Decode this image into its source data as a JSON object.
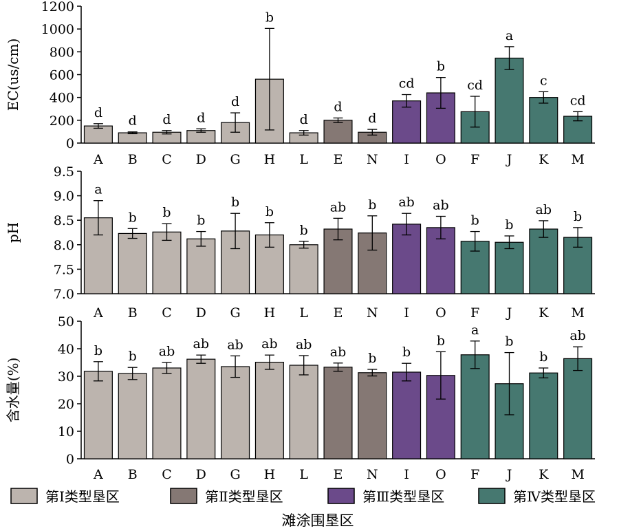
{
  "chart_data": [
    {
      "type": "bar",
      "ylabel": "EC(us/cm)",
      "ylim": [
        0,
        1200
      ],
      "yticks": [
        "0",
        "200",
        "400",
        "600",
        "800",
        "1000",
        "1200"
      ],
      "categories": [
        "A",
        "B",
        "C",
        "D",
        "G",
        "H",
        "L",
        "E",
        "N",
        "I",
        "O",
        "F",
        "J",
        "K",
        "M"
      ],
      "groups": [
        0,
        0,
        0,
        0,
        0,
        0,
        0,
        1,
        1,
        2,
        2,
        3,
        3,
        3,
        3
      ],
      "values": [
        150,
        90,
        95,
        110,
        180,
        560,
        90,
        200,
        95,
        370,
        440,
        275,
        745,
        400,
        235
      ],
      "errors": [
        20,
        8,
        15,
        15,
        85,
        445,
        20,
        20,
        25,
        55,
        135,
        135,
        100,
        50,
        40
      ],
      "letters": [
        "d",
        "d",
        "d",
        "d",
        "d",
        "b",
        "d",
        "d",
        "d",
        "cd",
        "b",
        "cd",
        "a",
        "c",
        "cd"
      ]
    },
    {
      "type": "bar",
      "ylabel": "pH",
      "ylim": [
        7.0,
        9.5
      ],
      "yticks": [
        "7.0",
        "7.5",
        "8.0",
        "8.5",
        "9.0",
        "9.5"
      ],
      "categories": [
        "A",
        "B",
        "C",
        "D",
        "G",
        "H",
        "L",
        "E",
        "N",
        "I",
        "O",
        "F",
        "J",
        "K",
        "M"
      ],
      "groups": [
        0,
        0,
        0,
        0,
        0,
        0,
        0,
        1,
        1,
        2,
        2,
        3,
        3,
        3,
        3
      ],
      "values": [
        8.55,
        8.23,
        8.26,
        8.12,
        8.28,
        8.2,
        8.0,
        8.32,
        8.24,
        8.42,
        8.35,
        8.07,
        8.05,
        8.32,
        8.15
      ],
      "errors": [
        0.35,
        0.1,
        0.17,
        0.15,
        0.36,
        0.25,
        0.07,
        0.22,
        0.35,
        0.22,
        0.23,
        0.2,
        0.13,
        0.17,
        0.2
      ],
      "letters": [
        "a",
        "b",
        "b",
        "b",
        "b",
        "b",
        "b",
        "ab",
        "b",
        "ab",
        "ab",
        "b",
        "b",
        "ab",
        "b"
      ]
    },
    {
      "type": "bar",
      "ylabel": "含水量(%)",
      "ylim": [
        0,
        50
      ],
      "yticks": [
        "0",
        "10",
        "20",
        "30",
        "40",
        "50"
      ],
      "categories": [
        "A",
        "B",
        "C",
        "D",
        "G",
        "H",
        "L",
        "E",
        "N",
        "I",
        "O",
        "F",
        "J",
        "K",
        "M"
      ],
      "groups": [
        0,
        0,
        0,
        0,
        0,
        0,
        0,
        1,
        1,
        2,
        2,
        3,
        3,
        3,
        3
      ],
      "values": [
        31.8,
        31.0,
        33.0,
        36.2,
        33.5,
        35.1,
        34.0,
        33.3,
        31.3,
        31.5,
        30.3,
        37.8,
        27.3,
        31.2,
        36.4
      ],
      "errors": [
        3.5,
        2.2,
        2.0,
        1.5,
        3.9,
        2.6,
        3.5,
        1.5,
        1.2,
        3.2,
        8.6,
        5.0,
        11.3,
        1.8,
        4.3
      ],
      "letters": [
        "b",
        "b",
        "ab",
        "ab",
        "ab",
        "ab",
        "ab",
        "ab",
        "b",
        "b",
        "b",
        "a",
        "b",
        "b",
        "ab"
      ]
    }
  ],
  "legend": {
    "entries": [
      {
        "label": "第Ⅰ类型垦区",
        "color": "#bcb4ae"
      },
      {
        "label": "第Ⅱ类型垦区",
        "color": "#857874"
      },
      {
        "label": "第Ⅲ类型垦区",
        "color": "#6b4a8a"
      },
      {
        "label": "第Ⅳ类型垦区",
        "color": "#467870"
      }
    ]
  },
  "xlabel": "滩涂围垦区"
}
